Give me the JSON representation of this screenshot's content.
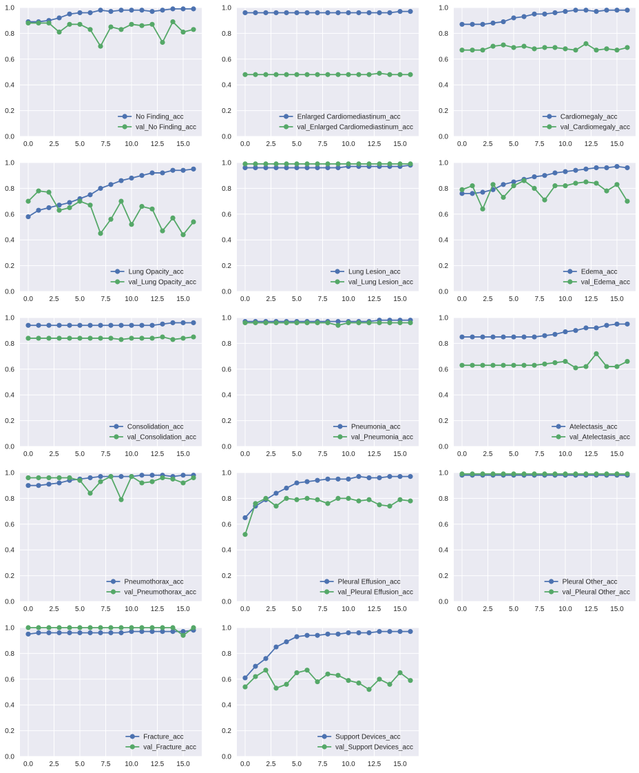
{
  "colors": {
    "train": "#4C72B0",
    "val": "#55A868",
    "panel_bg": "#EAEAF2",
    "grid": "#FFFFFF"
  },
  "shared_axes": {
    "x_ticks": [
      "0.0",
      "2.5",
      "5.0",
      "7.5",
      "10.0",
      "12.5",
      "15.0"
    ],
    "y_ticks": [
      "0.0",
      "0.2",
      "0.4",
      "0.6",
      "0.8",
      "1.0"
    ],
    "x_range": [
      -0.8,
      16.8
    ],
    "y_range": [
      0,
      1
    ],
    "legend_position": "lower-right"
  },
  "chart_data": [
    {
      "type": "line",
      "grid": true,
      "legend": "lower-right",
      "x": [
        0,
        1,
        2,
        3,
        4,
        5,
        6,
        7,
        8,
        9,
        10,
        11,
        12,
        13,
        14,
        15,
        16
      ],
      "series": [
        {
          "name": "No Finding_acc",
          "values": [
            0.89,
            0.89,
            0.9,
            0.92,
            0.95,
            0.96,
            0.96,
            0.98,
            0.97,
            0.98,
            0.98,
            0.98,
            0.97,
            0.98,
            0.99,
            0.99,
            0.99
          ]
        },
        {
          "name": "val_No Finding_acc",
          "values": [
            0.88,
            0.88,
            0.88,
            0.81,
            0.87,
            0.87,
            0.83,
            0.7,
            0.85,
            0.83,
            0.87,
            0.86,
            0.87,
            0.73,
            0.89,
            0.81,
            0.83
          ]
        }
      ]
    },
    {
      "type": "line",
      "grid": true,
      "legend": "lower-right",
      "x": [
        0,
        1,
        2,
        3,
        4,
        5,
        6,
        7,
        8,
        9,
        10,
        11,
        12,
        13,
        14,
        15,
        16
      ],
      "series": [
        {
          "name": "Enlarged Cardiomediastinum_acc",
          "values": [
            0.96,
            0.96,
            0.96,
            0.96,
            0.96,
            0.96,
            0.96,
            0.96,
            0.96,
            0.96,
            0.96,
            0.96,
            0.96,
            0.96,
            0.96,
            0.97,
            0.97
          ]
        },
        {
          "name": "val_Enlarged Cardiomediastinum_acc",
          "values": [
            0.48,
            0.48,
            0.48,
            0.48,
            0.48,
            0.48,
            0.48,
            0.48,
            0.48,
            0.48,
            0.48,
            0.48,
            0.48,
            0.49,
            0.48,
            0.48,
            0.48
          ]
        }
      ]
    },
    {
      "type": "line",
      "grid": true,
      "legend": "lower-right",
      "x": [
        0,
        1,
        2,
        3,
        4,
        5,
        6,
        7,
        8,
        9,
        10,
        11,
        12,
        13,
        14,
        15,
        16
      ],
      "series": [
        {
          "name": "Cardiomegaly_acc",
          "values": [
            0.87,
            0.87,
            0.87,
            0.88,
            0.89,
            0.92,
            0.93,
            0.95,
            0.95,
            0.96,
            0.97,
            0.98,
            0.98,
            0.97,
            0.98,
            0.98,
            0.98
          ]
        },
        {
          "name": "val_Cardiomegaly_acc",
          "values": [
            0.67,
            0.67,
            0.67,
            0.7,
            0.71,
            0.69,
            0.7,
            0.68,
            0.69,
            0.69,
            0.68,
            0.67,
            0.72,
            0.67,
            0.68,
            0.67,
            0.69
          ]
        }
      ]
    },
    {
      "type": "line",
      "grid": true,
      "legend": "lower-right",
      "x": [
        0,
        1,
        2,
        3,
        4,
        5,
        6,
        7,
        8,
        9,
        10,
        11,
        12,
        13,
        14,
        15,
        16
      ],
      "series": [
        {
          "name": "Lung Opacity_acc",
          "values": [
            0.58,
            0.63,
            0.65,
            0.67,
            0.69,
            0.72,
            0.75,
            0.8,
            0.83,
            0.86,
            0.88,
            0.9,
            0.92,
            0.92,
            0.94,
            0.94,
            0.95
          ]
        },
        {
          "name": "val_Lung Opacity_acc",
          "values": [
            0.7,
            0.78,
            0.77,
            0.63,
            0.65,
            0.7,
            0.67,
            0.45,
            0.56,
            0.7,
            0.52,
            0.66,
            0.64,
            0.47,
            0.57,
            0.44,
            0.54
          ]
        }
      ]
    },
    {
      "type": "line",
      "grid": true,
      "legend": "lower-right",
      "x": [
        0,
        1,
        2,
        3,
        4,
        5,
        6,
        7,
        8,
        9,
        10,
        11,
        12,
        13,
        14,
        15,
        16
      ],
      "series": [
        {
          "name": "Lung Lesion_acc",
          "values": [
            0.96,
            0.96,
            0.96,
            0.96,
            0.96,
            0.96,
            0.96,
            0.96,
            0.96,
            0.96,
            0.97,
            0.97,
            0.97,
            0.97,
            0.97,
            0.97,
            0.98
          ]
        },
        {
          "name": "val_Lung Lesion_acc",
          "values": [
            0.99,
            0.99,
            0.99,
            0.99,
            0.99,
            0.99,
            0.99,
            0.99,
            0.99,
            0.99,
            0.99,
            0.99,
            0.99,
            0.99,
            0.99,
            0.99,
            0.99
          ]
        }
      ]
    },
    {
      "type": "line",
      "grid": true,
      "legend": "lower-right",
      "x": [
        0,
        1,
        2,
        3,
        4,
        5,
        6,
        7,
        8,
        9,
        10,
        11,
        12,
        13,
        14,
        15,
        16
      ],
      "series": [
        {
          "name": "Edema_acc",
          "values": [
            0.76,
            0.76,
            0.77,
            0.79,
            0.83,
            0.85,
            0.87,
            0.89,
            0.9,
            0.92,
            0.93,
            0.94,
            0.95,
            0.96,
            0.96,
            0.97,
            0.96
          ]
        },
        {
          "name": "val_Edema_acc",
          "values": [
            0.79,
            0.82,
            0.64,
            0.83,
            0.73,
            0.82,
            0.86,
            0.8,
            0.71,
            0.82,
            0.82,
            0.84,
            0.85,
            0.84,
            0.78,
            0.83,
            0.7
          ]
        }
      ]
    },
    {
      "type": "line",
      "grid": true,
      "legend": "lower-right",
      "x": [
        0,
        1,
        2,
        3,
        4,
        5,
        6,
        7,
        8,
        9,
        10,
        11,
        12,
        13,
        14,
        15,
        16
      ],
      "series": [
        {
          "name": "Consolidation_acc",
          "values": [
            0.94,
            0.94,
            0.94,
            0.94,
            0.94,
            0.94,
            0.94,
            0.94,
            0.94,
            0.94,
            0.94,
            0.94,
            0.94,
            0.95,
            0.96,
            0.96,
            0.96
          ]
        },
        {
          "name": "val_Consolidation_acc",
          "values": [
            0.84,
            0.84,
            0.84,
            0.84,
            0.84,
            0.84,
            0.84,
            0.84,
            0.84,
            0.83,
            0.84,
            0.84,
            0.84,
            0.85,
            0.83,
            0.84,
            0.85
          ]
        }
      ]
    },
    {
      "type": "line",
      "grid": true,
      "legend": "lower-right",
      "x": [
        0,
        1,
        2,
        3,
        4,
        5,
        6,
        7,
        8,
        9,
        10,
        11,
        12,
        13,
        14,
        15,
        16
      ],
      "series": [
        {
          "name": "Pneumonia_acc",
          "values": [
            0.97,
            0.97,
            0.97,
            0.97,
            0.97,
            0.97,
            0.97,
            0.97,
            0.97,
            0.97,
            0.97,
            0.97,
            0.97,
            0.98,
            0.98,
            0.98,
            0.98
          ]
        },
        {
          "name": "val_Pneumonia_acc",
          "values": [
            0.96,
            0.96,
            0.96,
            0.96,
            0.96,
            0.96,
            0.96,
            0.96,
            0.96,
            0.94,
            0.96,
            0.96,
            0.96,
            0.96,
            0.96,
            0.96,
            0.96
          ]
        }
      ]
    },
    {
      "type": "line",
      "grid": true,
      "legend": "lower-right",
      "x": [
        0,
        1,
        2,
        3,
        4,
        5,
        6,
        7,
        8,
        9,
        10,
        11,
        12,
        13,
        14,
        15,
        16
      ],
      "series": [
        {
          "name": "Atelectasis_acc",
          "values": [
            0.85,
            0.85,
            0.85,
            0.85,
            0.85,
            0.85,
            0.85,
            0.85,
            0.86,
            0.87,
            0.89,
            0.9,
            0.92,
            0.92,
            0.94,
            0.95,
            0.95
          ]
        },
        {
          "name": "val_Atelectasis_acc",
          "values": [
            0.63,
            0.63,
            0.63,
            0.63,
            0.63,
            0.63,
            0.63,
            0.63,
            0.64,
            0.65,
            0.66,
            0.61,
            0.62,
            0.72,
            0.62,
            0.62,
            0.66
          ]
        }
      ]
    },
    {
      "type": "line",
      "grid": true,
      "legend": "lower-right",
      "x": [
        0,
        1,
        2,
        3,
        4,
        5,
        6,
        7,
        8,
        9,
        10,
        11,
        12,
        13,
        14,
        15,
        16
      ],
      "series": [
        {
          "name": "Pneumothorax_acc",
          "values": [
            0.9,
            0.9,
            0.91,
            0.92,
            0.94,
            0.95,
            0.96,
            0.97,
            0.97,
            0.97,
            0.97,
            0.98,
            0.98,
            0.98,
            0.97,
            0.98,
            0.98
          ]
        },
        {
          "name": "val_Pneumothorax_acc",
          "values": [
            0.96,
            0.96,
            0.96,
            0.96,
            0.96,
            0.94,
            0.84,
            0.93,
            0.97,
            0.79,
            0.97,
            0.92,
            0.93,
            0.96,
            0.95,
            0.92,
            0.96
          ]
        }
      ]
    },
    {
      "type": "line",
      "grid": true,
      "legend": "lower-right",
      "x": [
        0,
        1,
        2,
        3,
        4,
        5,
        6,
        7,
        8,
        9,
        10,
        11,
        12,
        13,
        14,
        15,
        16
      ],
      "series": [
        {
          "name": "Pleural Effusion_acc",
          "values": [
            0.65,
            0.74,
            0.79,
            0.84,
            0.88,
            0.92,
            0.93,
            0.94,
            0.95,
            0.95,
            0.95,
            0.97,
            0.96,
            0.96,
            0.97,
            0.97,
            0.97
          ]
        },
        {
          "name": "val_Pleural Effusion_acc",
          "values": [
            0.52,
            0.76,
            0.8,
            0.74,
            0.8,
            0.79,
            0.8,
            0.79,
            0.76,
            0.8,
            0.8,
            0.78,
            0.79,
            0.75,
            0.74,
            0.79,
            0.78
          ]
        }
      ]
    },
    {
      "type": "line",
      "grid": true,
      "legend": "lower-right",
      "x": [
        0,
        1,
        2,
        3,
        4,
        5,
        6,
        7,
        8,
        9,
        10,
        11,
        12,
        13,
        14,
        15,
        16
      ],
      "series": [
        {
          "name": "Pleural Other_acc",
          "values": [
            0.98,
            0.98,
            0.98,
            0.98,
            0.98,
            0.98,
            0.98,
            0.98,
            0.98,
            0.98,
            0.98,
            0.98,
            0.98,
            0.98,
            0.98,
            0.98,
            0.98
          ]
        },
        {
          "name": "val_Pleural Other_acc",
          "values": [
            0.99,
            0.99,
            0.99,
            0.99,
            0.99,
            0.99,
            0.99,
            0.99,
            0.99,
            0.99,
            0.99,
            0.99,
            0.99,
            0.99,
            0.99,
            0.99,
            0.99
          ]
        }
      ]
    },
    {
      "type": "line",
      "grid": true,
      "legend": "lower-right",
      "x": [
        0,
        1,
        2,
        3,
        4,
        5,
        6,
        7,
        8,
        9,
        10,
        11,
        12,
        13,
        14,
        15,
        16
      ],
      "series": [
        {
          "name": "Fracture_acc",
          "values": [
            0.95,
            0.96,
            0.96,
            0.96,
            0.96,
            0.96,
            0.96,
            0.96,
            0.96,
            0.96,
            0.97,
            0.97,
            0.97,
            0.97,
            0.97,
            0.97,
            0.98
          ]
        },
        {
          "name": "val_Fracture_acc",
          "values": [
            1.0,
            1.0,
            1.0,
            1.0,
            1.0,
            1.0,
            1.0,
            1.0,
            1.0,
            1.0,
            1.0,
            1.0,
            1.0,
            1.0,
            1.0,
            0.94,
            1.0
          ]
        }
      ]
    },
    {
      "type": "line",
      "grid": true,
      "legend": "lower-right",
      "x": [
        0,
        1,
        2,
        3,
        4,
        5,
        6,
        7,
        8,
        9,
        10,
        11,
        12,
        13,
        14,
        15,
        16
      ],
      "series": [
        {
          "name": "Support Devices_acc",
          "values": [
            0.61,
            0.7,
            0.76,
            0.85,
            0.89,
            0.93,
            0.94,
            0.94,
            0.95,
            0.95,
            0.96,
            0.96,
            0.96,
            0.97,
            0.97,
            0.97,
            0.97
          ]
        },
        {
          "name": "val_Support Devices_acc",
          "values": [
            0.54,
            0.62,
            0.67,
            0.53,
            0.56,
            0.65,
            0.67,
            0.58,
            0.64,
            0.63,
            0.59,
            0.57,
            0.52,
            0.6,
            0.56,
            0.65,
            0.59
          ]
        }
      ]
    }
  ]
}
